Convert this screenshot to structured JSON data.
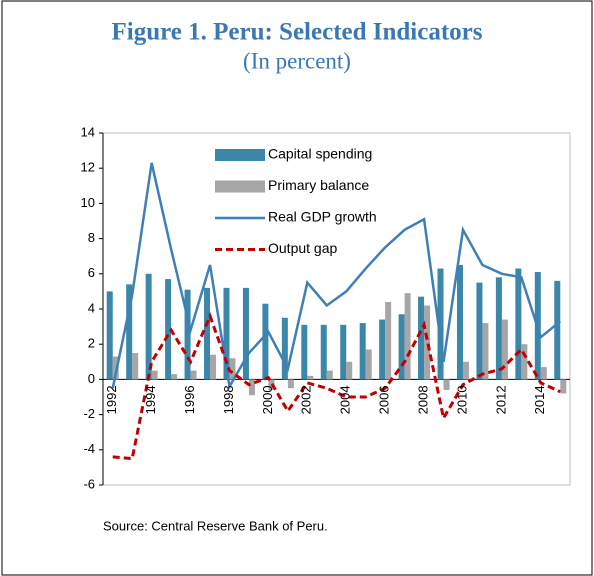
{
  "chart_data": {
    "type": "bar",
    "title": "Figure 1. Peru: Selected Indicators",
    "subtitle": "(In percent)",
    "source": "Source:  Central Reserve Bank of Peru.",
    "categories": [
      "1992",
      null,
      "1994",
      null,
      "1996",
      null,
      "1998",
      null,
      "2000",
      null,
      "2002",
      null,
      "2004",
      null,
      "2006",
      null,
      "2008",
      null,
      "2010",
      null,
      "2012",
      null,
      "2014",
      null
    ],
    "series": [
      {
        "name": "Capital spending",
        "type": "bar",
        "color": "#3a87a9",
        "values": [
          5.0,
          5.4,
          6.0,
          5.7,
          5.1,
          5.2,
          5.2,
          5.2,
          4.3,
          3.5,
          3.1,
          3.1,
          3.1,
          3.2,
          3.4,
          3.7,
          4.7,
          6.3,
          6.5,
          5.5,
          5.8,
          6.3,
          6.1,
          5.6
        ]
      },
      {
        "name": "Primary balance",
        "type": "bar",
        "color": "#a6a6a6",
        "values": [
          1.3,
          1.5,
          0.5,
          0.3,
          0.5,
          1.4,
          1.2,
          -0.9,
          -0.6,
          -0.5,
          0.2,
          0.5,
          1.0,
          1.7,
          4.4,
          4.9,
          4.2,
          -0.6,
          1.0,
          3.2,
          3.4,
          2.0,
          0.7,
          -0.8
        ]
      },
      {
        "name": "Real GDP growth",
        "type": "line",
        "color": "#3f7fb8",
        "values": [
          -0.5,
          4.8,
          12.3,
          7.4,
          2.8,
          6.5,
          -0.4,
          1.5,
          2.7,
          0.6,
          5.5,
          4.2,
          5.0,
          6.3,
          7.5,
          8.5,
          9.1,
          1.0,
          8.5,
          6.5,
          6.0,
          5.8,
          2.4,
          3.3
        ]
      },
      {
        "name": "Output gap",
        "type": "line",
        "dashed": true,
        "color": "#c00000",
        "values": [
          -4.4,
          -4.5,
          1.0,
          2.8,
          1.0,
          3.6,
          0.5,
          -0.3,
          0.1,
          -1.8,
          -0.2,
          -0.5,
          -1.0,
          -1.0,
          -0.5,
          1.0,
          3.1,
          -2.2,
          -0.3,
          0.3,
          0.6,
          1.7,
          -0.2,
          -0.7
        ]
      }
    ],
    "ylim": [
      -6,
      14
    ],
    "yticks": [
      -6,
      -4,
      -2,
      0,
      2,
      4,
      6,
      8,
      10,
      12,
      14
    ]
  }
}
